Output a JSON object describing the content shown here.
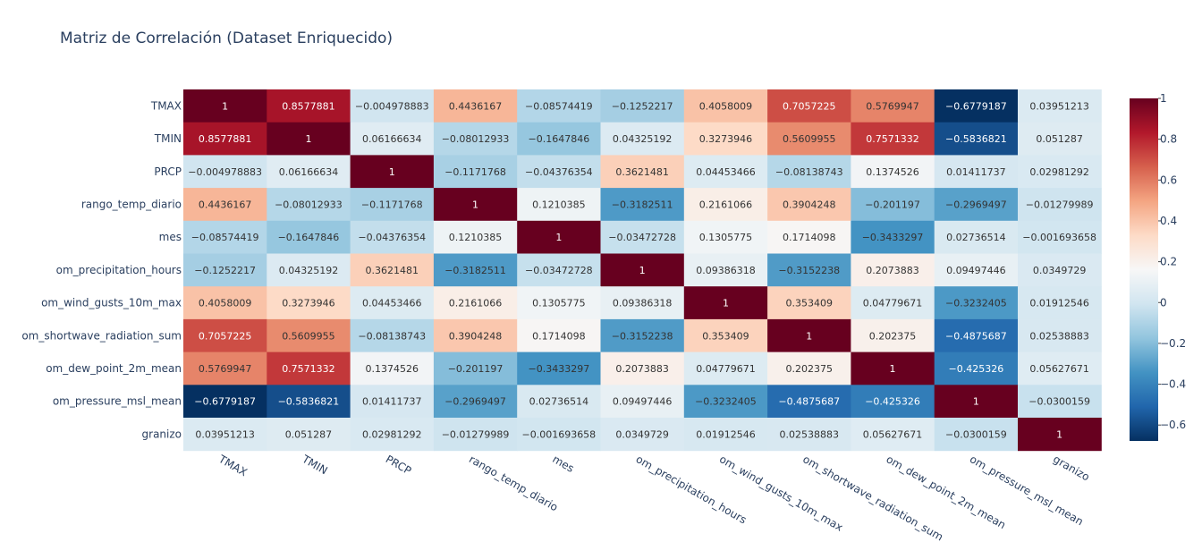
{
  "chart_data": {
    "type": "heatmap",
    "title": "Matriz de Correlación (Dataset Enriquecido)",
    "variables": [
      "TMAX",
      "TMIN",
      "PRCP",
      "rango_temp_diario",
      "mes",
      "om_precipitation_hours",
      "om_wind_gusts_10m_max",
      "om_shortwave_radiation_sum",
      "om_dew_point_2m_mean",
      "om_pressure_msl_mean",
      "granizo"
    ],
    "values": [
      [
        1,
        0.8577881,
        -0.004978883,
        0.4436167,
        -0.08574419,
        -0.1252217,
        0.4058009,
        0.7057225,
        0.5769947,
        -0.6779187,
        0.03951213
      ],
      [
        0.8577881,
        1,
        0.06166634,
        -0.08012933,
        -0.1647846,
        0.04325192,
        0.3273946,
        0.5609955,
        0.7571332,
        -0.5836821,
        0.051287
      ],
      [
        -0.004978883,
        0.06166634,
        1,
        -0.1171768,
        -0.04376354,
        0.3621481,
        0.04453466,
        -0.08138743,
        0.1374526,
        0.01411737,
        0.02981292
      ],
      [
        0.4436167,
        -0.08012933,
        -0.1171768,
        1,
        0.1210385,
        -0.3182511,
        0.2161066,
        0.3904248,
        -0.201197,
        -0.2969497,
        -0.01279989
      ],
      [
        -0.08574419,
        -0.1647846,
        -0.04376354,
        0.1210385,
        1,
        -0.03472728,
        0.1305775,
        0.1714098,
        -0.3433297,
        0.02736514,
        -0.001693658
      ],
      [
        -0.1252217,
        0.04325192,
        0.3621481,
        -0.3182511,
        -0.03472728,
        1,
        0.09386318,
        -0.3152238,
        0.2073883,
        0.09497446,
        0.0349729
      ],
      [
        0.4058009,
        0.3273946,
        0.04453466,
        0.2161066,
        0.1305775,
        0.09386318,
        1,
        0.353409,
        0.04779671,
        -0.3232405,
        0.01912546
      ],
      [
        0.7057225,
        0.5609955,
        -0.08138743,
        0.3904248,
        0.1714098,
        -0.3152238,
        0.353409,
        1,
        0.202375,
        -0.4875687,
        0.02538883
      ],
      [
        0.5769947,
        0.7571332,
        0.1374526,
        -0.201197,
        -0.3433297,
        0.2073883,
        0.04779671,
        0.202375,
        1,
        -0.425326,
        0.05627671
      ],
      [
        -0.6779187,
        -0.5836821,
        0.01411737,
        -0.2969497,
        0.02736514,
        0.09497446,
        -0.3232405,
        -0.4875687,
        -0.425326,
        1,
        -0.0300159
      ],
      [
        0.03951213,
        0.051287,
        0.02981292,
        -0.01279989,
        -0.001693658,
        0.0349729,
        0.01912546,
        0.02538883,
        0.05627671,
        -0.0300159,
        1
      ]
    ],
    "colorscale": "RdBu",
    "zmin": -0.6779187,
    "zmax": 1,
    "colorbar_ticks": [
      1,
      0.8,
      0.6,
      0.4,
      0.2,
      0,
      -0.2,
      -0.4,
      -0.6
    ],
    "colors": [
      "#053061",
      "#2166ac",
      "#4393c3",
      "#92c5de",
      "#d1e5f0",
      "#f7f7f7",
      "#fddbc7",
      "#f4a582",
      "#d6604d",
      "#b2182b",
      "#67001f"
    ]
  }
}
